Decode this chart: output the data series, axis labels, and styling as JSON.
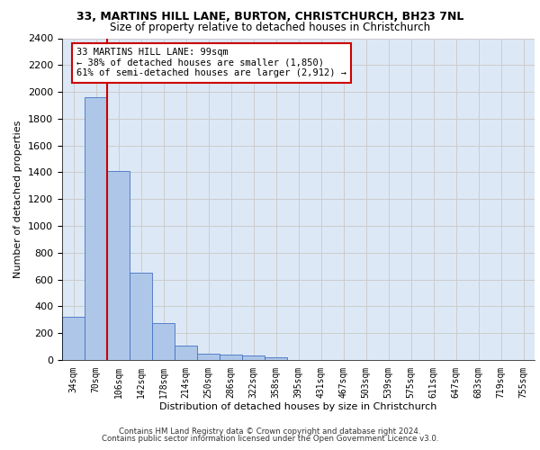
{
  "title_line1": "33, MARTINS HILL LANE, BURTON, CHRISTCHURCH, BH23 7NL",
  "title_line2": "Size of property relative to detached houses in Christchurch",
  "xlabel": "Distribution of detached houses by size in Christchurch",
  "ylabel": "Number of detached properties",
  "categories": [
    "34sqm",
    "70sqm",
    "106sqm",
    "142sqm",
    "178sqm",
    "214sqm",
    "250sqm",
    "286sqm",
    "322sqm",
    "358sqm",
    "395sqm",
    "431sqm",
    "467sqm",
    "503sqm",
    "539sqm",
    "575sqm",
    "611sqm",
    "647sqm",
    "683sqm",
    "719sqm",
    "755sqm"
  ],
  "bar_values": [
    325,
    1960,
    1410,
    650,
    275,
    105,
    50,
    40,
    35,
    22,
    0,
    0,
    0,
    0,
    0,
    0,
    0,
    0,
    0,
    0,
    0
  ],
  "bar_color": "#aec6e8",
  "bar_edge_color": "#4472c4",
  "annotation_text": "33 MARTINS HILL LANE: 99sqm\n← 38% of detached houses are smaller (1,850)\n61% of semi-detached houses are larger (2,912) →",
  "annotation_box_color": "#ffffff",
  "annotation_box_edge_color": "#cc0000",
  "ylim": [
    0,
    2400
  ],
  "yticks": [
    0,
    200,
    400,
    600,
    800,
    1000,
    1200,
    1400,
    1600,
    1800,
    2000,
    2200,
    2400
  ],
  "grid_color": "#cccccc",
  "bg_color": "#dce8f5",
  "footer_line1": "Contains HM Land Registry data © Crown copyright and database right 2024.",
  "footer_line2": "Contains public sector information licensed under the Open Government Licence v3.0."
}
